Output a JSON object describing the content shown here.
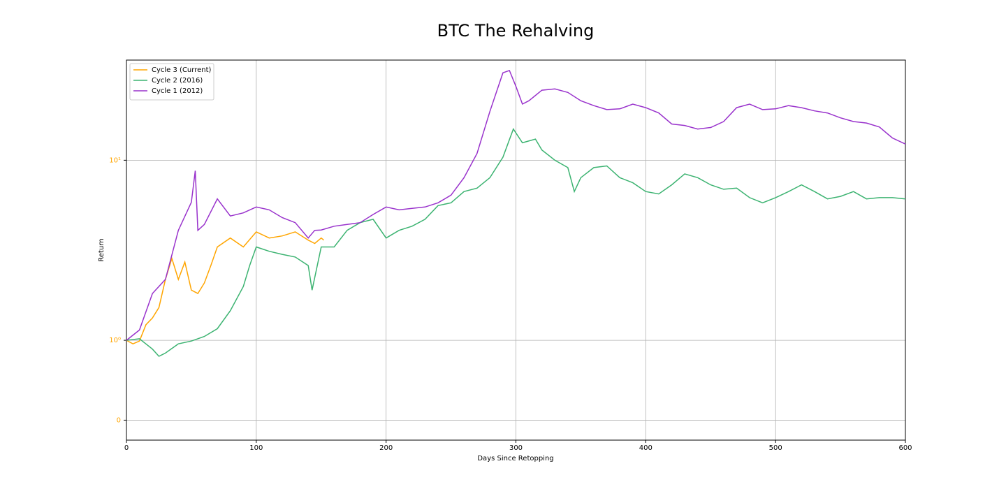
{
  "chart_data": {
    "type": "line",
    "title": "BTC The Rehalving",
    "x_label": "Days Since Retopping",
    "y_label": "Return",
    "yscale": "symlog",
    "linthresh": 1,
    "grid": true,
    "legend": "upper left",
    "ytick_color": "#ffa500",
    "xlim": [
      0,
      600
    ],
    "xticks": [
      0,
      100,
      200,
      300,
      400,
      500,
      600
    ],
    "ylim": [
      -0.25,
      36
    ],
    "yticks": [
      0,
      {
        "value": 1,
        "label": "10⁰"
      },
      {
        "value": 10,
        "label": "10¹"
      }
    ],
    "series": [
      {
        "name": "Cycle 3 (Current)",
        "color": "#ffa500",
        "x": [
          0,
          5,
          10,
          15,
          20,
          25,
          30,
          35,
          40,
          45,
          50,
          55,
          60,
          65,
          70,
          80,
          90,
          100,
          110,
          120,
          130,
          140,
          145,
          150,
          152
        ],
        "values": [
          1.0,
          0.955,
          0.99,
          1.22,
          1.33,
          1.52,
          2.18,
          2.85,
          2.18,
          2.72,
          1.9,
          1.82,
          2.08,
          2.6,
          3.3,
          3.7,
          3.3,
          4.0,
          3.7,
          3.8,
          4.0,
          3.6,
          3.45,
          3.7,
          3.6
        ]
      },
      {
        "name": "Cycle 2 (2016)",
        "color": "#3cb371",
        "x": [
          0,
          10,
          20,
          25,
          30,
          40,
          50,
          60,
          70,
          80,
          90,
          95,
          100,
          110,
          120,
          130,
          140,
          143,
          150,
          160,
          170,
          180,
          190,
          200,
          210,
          220,
          230,
          240,
          250,
          260,
          270,
          280,
          290,
          298,
          305,
          315,
          320,
          330,
          340,
          345,
          350,
          360,
          370,
          380,
          390,
          400,
          410,
          420,
          430,
          440,
          450,
          460,
          470,
          480,
          490,
          500,
          510,
          520,
          530,
          540,
          550,
          560,
          570,
          580,
          590,
          600
        ],
        "values": [
          1.0,
          1.02,
          0.89,
          0.8,
          0.84,
          0.955,
          0.99,
          1.05,
          1.16,
          1.46,
          1.99,
          2.61,
          3.3,
          3.12,
          3.0,
          2.9,
          2.6,
          1.9,
          3.3,
          3.3,
          4.08,
          4.5,
          4.7,
          3.7,
          4.08,
          4.3,
          4.7,
          5.6,
          5.8,
          6.7,
          7.0,
          8.0,
          10.4,
          14.9,
          12.5,
          13.1,
          11.4,
          10.0,
          9.1,
          6.7,
          8.0,
          9.1,
          9.3,
          8.0,
          7.5,
          6.7,
          6.5,
          7.3,
          8.4,
          8.0,
          7.3,
          6.9,
          7.0,
          6.2,
          5.8,
          6.2,
          6.7,
          7.3,
          6.7,
          6.1,
          6.3,
          6.7,
          6.1,
          6.2,
          6.2,
          6.1
        ]
      },
      {
        "name": "Cycle 1 (2012)",
        "color": "#9932cc",
        "x": [
          0,
          10,
          20,
          30,
          40,
          50,
          53,
          55,
          60,
          70,
          80,
          90,
          100,
          110,
          120,
          130,
          140,
          145,
          150,
          160,
          170,
          180,
          190,
          200,
          210,
          220,
          230,
          240,
          250,
          260,
          270,
          280,
          290,
          295,
          300,
          305,
          310,
          320,
          330,
          340,
          350,
          360,
          370,
          380,
          390,
          400,
          410,
          420,
          430,
          440,
          450,
          460,
          470,
          480,
          490,
          500,
          510,
          520,
          530,
          540,
          550,
          560,
          570,
          580,
          590,
          600
        ],
        "values": [
          1.0,
          1.14,
          1.82,
          2.18,
          4.08,
          5.84,
          8.74,
          4.08,
          4.4,
          6.1,
          4.9,
          5.1,
          5.5,
          5.3,
          4.8,
          4.5,
          3.7,
          4.08,
          4.1,
          4.3,
          4.4,
          4.5,
          5.0,
          5.5,
          5.3,
          5.4,
          5.5,
          5.8,
          6.4,
          8.0,
          10.9,
          18.7,
          30.6,
          31.5,
          25.7,
          20.5,
          21.4,
          24.5,
          24.9,
          23.8,
          21.4,
          20.1,
          19.1,
          19.3,
          20.5,
          19.6,
          18.3,
          15.9,
          15.6,
          14.9,
          15.2,
          16.4,
          19.6,
          20.5,
          19.1,
          19.3,
          20.1,
          19.6,
          18.8,
          18.3,
          17.2,
          16.4,
          16.1,
          15.3,
          13.3,
          12.3
        ]
      }
    ]
  }
}
